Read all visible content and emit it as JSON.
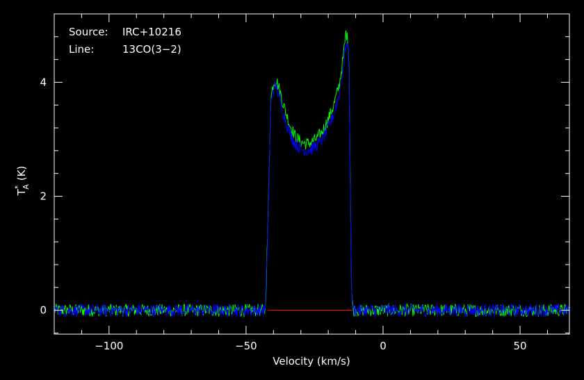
{
  "chart_data": {
    "type": "line",
    "title": "",
    "annotations": [
      {
        "label": "Source:",
        "value": "IRC+10216"
      },
      {
        "label": "Line:",
        "value": "13CO(3−2)"
      }
    ],
    "xlabel": "Velocity (km/s)",
    "ylabel": {
      "base": "T",
      "sup": "*",
      "sub": "A",
      "unit": "(K)"
    },
    "xlim": [
      -120,
      68
    ],
    "ylim": [
      -0.42,
      5.2
    ],
    "xticks": [
      {
        "value": -100,
        "label": "−100"
      },
      {
        "value": -50,
        "label": "−50"
      },
      {
        "value": 0,
        "label": "0"
      },
      {
        "value": 50,
        "label": "50"
      }
    ],
    "yticks": [
      {
        "value": 0,
        "label": "0"
      },
      {
        "value": 2,
        "label": "2"
      },
      {
        "value": 4,
        "label": "4"
      }
    ],
    "grid": false,
    "background": "#000000",
    "axis_color": "#ffffff",
    "series": [
      {
        "color": "#00ff00",
        "noise": 0.11,
        "x": [
          -120,
          -43,
          -42,
          -41,
          -40,
          -39,
          -38,
          -36,
          -34,
          -32,
          -30,
          -28,
          -26,
          -24,
          -22,
          -20,
          -18,
          -16,
          -14.5,
          -13.5,
          -12.5,
          -12,
          -11.5,
          -11,
          68
        ],
        "y": [
          0,
          0,
          1.5,
          3.7,
          4.0,
          4.05,
          3.9,
          3.55,
          3.25,
          3.05,
          2.95,
          2.92,
          2.95,
          3.02,
          3.15,
          3.35,
          3.6,
          3.95,
          4.45,
          4.9,
          4.6,
          2.5,
          0.3,
          0,
          0
        ]
      },
      {
        "color": "#0000ff",
        "noise": 0.11,
        "x": [
          -120,
          -43,
          -42,
          -41,
          -40,
          -39,
          -38,
          -36,
          -34,
          -32,
          -30,
          -28,
          -26,
          -24,
          -22,
          -20,
          -18,
          -16,
          -14.5,
          -13.5,
          -12.5,
          -12,
          -11.5,
          -11,
          68
        ],
        "y": [
          0,
          0,
          1.45,
          3.6,
          3.9,
          3.93,
          3.75,
          3.4,
          3.1,
          2.92,
          2.83,
          2.8,
          2.83,
          2.9,
          3.0,
          3.2,
          3.45,
          3.8,
          4.3,
          4.7,
          4.5,
          2.4,
          0.3,
          0,
          0
        ]
      },
      {
        "color": "#ff0000",
        "noise": 0,
        "x": [
          -42,
          -11
        ],
        "y": [
          0,
          0
        ]
      }
    ]
  }
}
